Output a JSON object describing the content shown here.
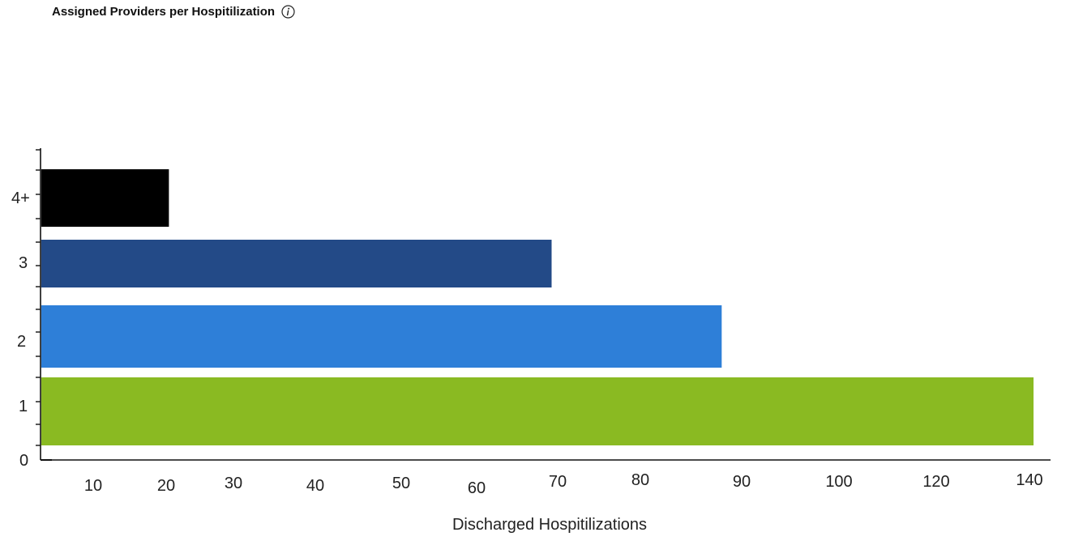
{
  "header": {
    "title": "Assigned Providers per Hospitilization",
    "info_icon": "info-icon"
  },
  "chart_data": {
    "type": "bar",
    "orientation": "horizontal",
    "title": "Assigned Providers per Hospitilization",
    "xlabel": "Discharged Hospitilizations",
    "ylabel": "",
    "categories": [
      "1",
      "2",
      "3",
      "4+"
    ],
    "values": [
      140,
      96,
      72,
      18
    ],
    "colors": [
      "#8aba22",
      "#2e7fd8",
      "#234a87",
      "#000000"
    ],
    "x_tick_labels": [
      "10",
      "20",
      "30",
      "40",
      "50",
      "60",
      "70",
      "80",
      "90",
      "100",
      "120",
      "140"
    ],
    "y_tick_labels": [
      "0",
      "1",
      "2",
      "3",
      "4+"
    ],
    "xlim": [
      0,
      140
    ],
    "grid": false,
    "legend": "none"
  }
}
